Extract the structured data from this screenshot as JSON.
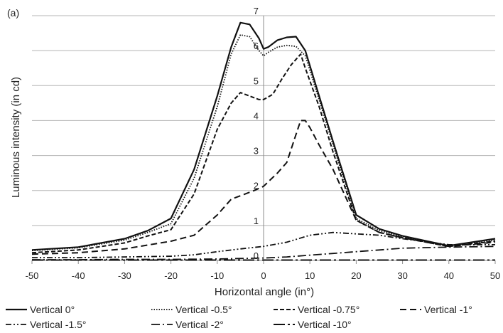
{
  "chart_data": {
    "type": "line",
    "panel_label": "(a)",
    "title": "",
    "xlabel": "Horizontal angle (in°)",
    "ylabel": "Luminous intensity (in cd)",
    "xlim": [
      -50,
      50
    ],
    "ylim": [
      0,
      7
    ],
    "xticks": [
      -50,
      -40,
      -30,
      -20,
      -10,
      0,
      10,
      20,
      30,
      40,
      50
    ],
    "yticks": [
      1,
      2,
      3,
      4,
      5,
      6,
      7
    ],
    "grid": "horizontal",
    "legend_position": "bottom",
    "series": [
      {
        "name": "Vertical 0°",
        "style": "solid",
        "points": [
          [
            -50,
            0.3
          ],
          [
            -40,
            0.38
          ],
          [
            -30,
            0.62
          ],
          [
            -25,
            0.85
          ],
          [
            -20,
            1.2
          ],
          [
            -15,
            2.6
          ],
          [
            -10,
            4.7
          ],
          [
            -7,
            6.1
          ],
          [
            -5,
            6.8
          ],
          [
            -3,
            6.75
          ],
          [
            -1,
            6.35
          ],
          [
            0,
            6.05
          ],
          [
            1,
            6.1
          ],
          [
            3,
            6.3
          ],
          [
            5,
            6.38
          ],
          [
            7,
            6.4
          ],
          [
            9,
            6.0
          ],
          [
            12,
            4.7
          ],
          [
            15,
            3.4
          ],
          [
            20,
            1.3
          ],
          [
            25,
            0.9
          ],
          [
            30,
            0.7
          ],
          [
            40,
            0.42
          ],
          [
            50,
            0.62
          ]
        ]
      },
      {
        "name": "Vertical -0.5°",
        "style": "dotted",
        "points": [
          [
            -50,
            0.28
          ],
          [
            -40,
            0.36
          ],
          [
            -30,
            0.58
          ],
          [
            -25,
            0.8
          ],
          [
            -20,
            1.05
          ],
          [
            -15,
            2.35
          ],
          [
            -10,
            4.4
          ],
          [
            -7,
            5.9
          ],
          [
            -5,
            6.45
          ],
          [
            -3,
            6.4
          ],
          [
            -1,
            6.0
          ],
          [
            0,
            5.85
          ],
          [
            1,
            5.95
          ],
          [
            3,
            6.1
          ],
          [
            5,
            6.15
          ],
          [
            7,
            6.12
          ],
          [
            9,
            5.85
          ],
          [
            12,
            4.6
          ],
          [
            15,
            3.3
          ],
          [
            20,
            1.2
          ],
          [
            25,
            0.85
          ],
          [
            30,
            0.68
          ],
          [
            40,
            0.4
          ],
          [
            50,
            0.58
          ]
        ]
      },
      {
        "name": "Vertical -0.75°",
        "style": "dashed",
        "points": [
          [
            -50,
            0.22
          ],
          [
            -40,
            0.3
          ],
          [
            -30,
            0.5
          ],
          [
            -25,
            0.7
          ],
          [
            -20,
            0.88
          ],
          [
            -15,
            1.9
          ],
          [
            -10,
            3.75
          ],
          [
            -7,
            4.5
          ],
          [
            -5,
            4.8
          ],
          [
            -3,
            4.7
          ],
          [
            -1,
            4.6
          ],
          [
            0,
            4.6
          ],
          [
            2,
            4.75
          ],
          [
            4,
            5.2
          ],
          [
            6,
            5.6
          ],
          [
            8,
            5.9
          ],
          [
            9,
            5.5
          ],
          [
            12,
            4.4
          ],
          [
            15,
            3.1
          ],
          [
            20,
            1.15
          ],
          [
            25,
            0.8
          ],
          [
            30,
            0.65
          ],
          [
            40,
            0.4
          ],
          [
            50,
            0.55
          ]
        ]
      },
      {
        "name": "Vertical -1°",
        "style": "longdash",
        "points": [
          [
            -50,
            0.18
          ],
          [
            -40,
            0.22
          ],
          [
            -30,
            0.33
          ],
          [
            -20,
            0.55
          ],
          [
            -15,
            0.72
          ],
          [
            -10,
            1.3
          ],
          [
            -7,
            1.75
          ],
          [
            -5,
            1.85
          ],
          [
            -2,
            2.0
          ],
          [
            0,
            2.12
          ],
          [
            3,
            2.5
          ],
          [
            5,
            2.8
          ],
          [
            7,
            3.6
          ],
          [
            8,
            4.0
          ],
          [
            9,
            4.0
          ],
          [
            10,
            3.8
          ],
          [
            12,
            3.3
          ],
          [
            15,
            2.6
          ],
          [
            20,
            1.15
          ],
          [
            25,
            0.8
          ],
          [
            30,
            0.65
          ],
          [
            40,
            0.4
          ],
          [
            50,
            0.52
          ]
        ]
      },
      {
        "name": "Vertical -1.5°",
        "style": "dashdotdot",
        "points": [
          [
            -50,
            0.08
          ],
          [
            -40,
            0.08
          ],
          [
            -30,
            0.1
          ],
          [
            -20,
            0.12
          ],
          [
            -15,
            0.16
          ],
          [
            -10,
            0.25
          ],
          [
            -5,
            0.33
          ],
          [
            0,
            0.4
          ],
          [
            5,
            0.52
          ],
          [
            10,
            0.72
          ],
          [
            15,
            0.8
          ],
          [
            20,
            0.76
          ],
          [
            25,
            0.72
          ],
          [
            30,
            0.62
          ],
          [
            40,
            0.45
          ],
          [
            50,
            0.45
          ]
        ]
      },
      {
        "name": "Vertical -2°",
        "style": "dashdot",
        "points": [
          [
            -50,
            0.02
          ],
          [
            -40,
            0.02
          ],
          [
            -30,
            0.03
          ],
          [
            -20,
            0.03
          ],
          [
            -10,
            0.04
          ],
          [
            0,
            0.07
          ],
          [
            5,
            0.1
          ],
          [
            10,
            0.15
          ],
          [
            15,
            0.2
          ],
          [
            20,
            0.25
          ],
          [
            25,
            0.3
          ],
          [
            30,
            0.35
          ],
          [
            40,
            0.38
          ],
          [
            50,
            0.4
          ]
        ]
      },
      {
        "name": "Vertical -10°",
        "style": "dashdot-long",
        "points": [
          [
            -50,
            0.01
          ],
          [
            -40,
            0.01
          ],
          [
            -30,
            0.01
          ],
          [
            -20,
            0.01
          ],
          [
            -10,
            0.01
          ],
          [
            0,
            0.01
          ],
          [
            10,
            0.01
          ],
          [
            20,
            0.01
          ],
          [
            30,
            0.01
          ],
          [
            40,
            0.01
          ],
          [
            50,
            0.01
          ]
        ]
      }
    ]
  }
}
